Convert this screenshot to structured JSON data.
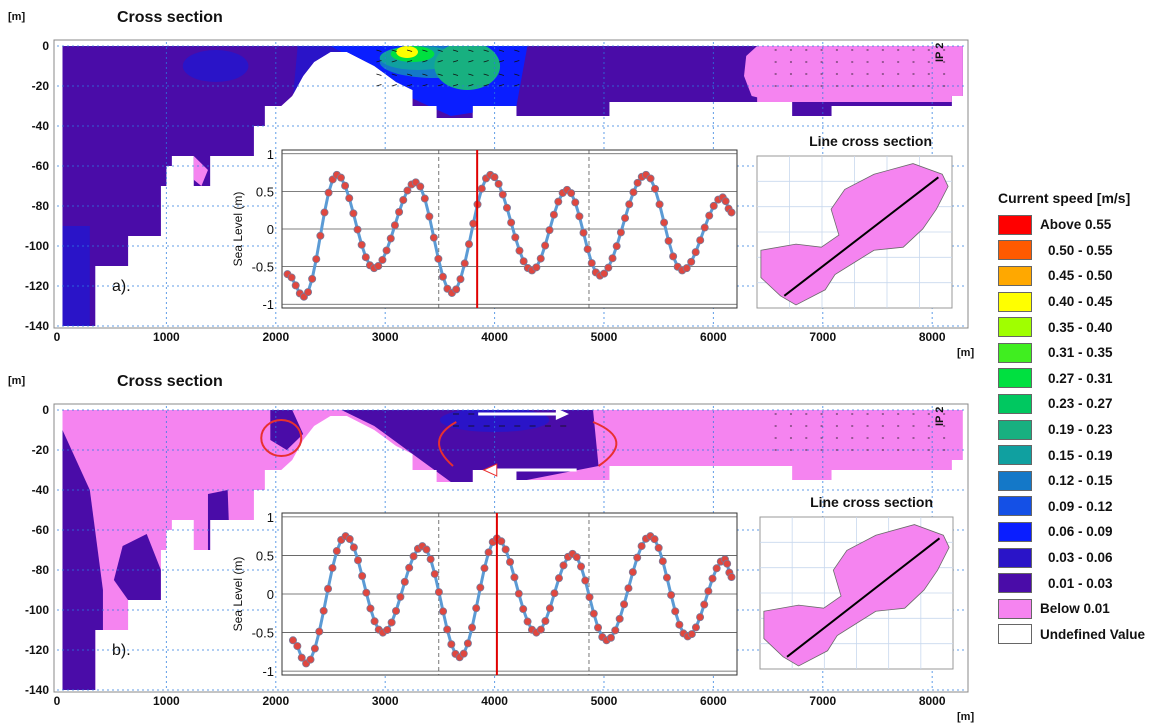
{
  "chart_data": [
    {
      "panel": "a).",
      "type": "area",
      "title": "Cross section",
      "unit_label": "[m]",
      "x_axis_label": "[m]",
      "x_ticks": [
        0,
        1000,
        2000,
        3000,
        4000,
        5000,
        6000,
        7000,
        8000
      ],
      "y_ticks": [
        0,
        -20,
        -40,
        -60,
        -80,
        -100,
        -120,
        -140
      ],
      "xlim": [
        0,
        8300
      ],
      "ylim": [
        -140,
        2
      ],
      "grid": true,
      "profile_label": "IP 2",
      "speed_classes": {
        "below_0_01": "x>=6400 and x<=8200 depth 0-25; x 1150-1350 depth 55-70; x 1400-1800 depth 0-20",
        "0_01_0_03": "western column x 50-1800",
        "0_03_0_09": "surface zone x 2500-4000",
        "0_09_0_27": "surface jet x 2900-3800 depth 0-15"
      },
      "inset_sea_level": {
        "type": "line",
        "ylabel": "Sea Level  (m)",
        "yticks": [
          1,
          0.5,
          0,
          -0.5,
          -1
        ],
        "ylim": [
          -1.05,
          1.05
        ],
        "x_range": [
          2150,
          6200
        ],
        "marker": "red circles",
        "line_color": "#5b9bd5",
        "current_time_x": 3880,
        "dashed_x": [
          3530,
          4900
        ],
        "peaks": [
          [
            2150,
            -0.6
          ],
          [
            2300,
            -0.9
          ],
          [
            2600,
            0.72
          ],
          [
            2940,
            -0.52
          ],
          [
            3320,
            0.62
          ],
          [
            3650,
            -0.85
          ],
          [
            4000,
            0.72
          ],
          [
            4380,
            -0.55
          ],
          [
            4700,
            0.52
          ],
          [
            5000,
            -0.62
          ],
          [
            5420,
            0.72
          ],
          [
            5750,
            -0.55
          ],
          [
            6120,
            0.42
          ],
          [
            6200,
            0.22
          ]
        ]
      },
      "inset_map_title": "Line cross section"
    },
    {
      "panel": "b).",
      "type": "area",
      "title": "Cross section",
      "unit_label": "[m]",
      "x_axis_label": "[m]",
      "x_ticks": [
        0,
        1000,
        2000,
        3000,
        4000,
        5000,
        6000,
        7000,
        8000
      ],
      "y_ticks": [
        0,
        -20,
        -40,
        -60,
        -80,
        -100,
        -120,
        -140
      ],
      "xlim": [
        0,
        8300
      ],
      "ylim": [
        -140,
        2
      ],
      "grid": true,
      "profile_label": "IP 2",
      "speed_classes": {
        "below_0_01": "most of section",
        "0_01_0_03": "x 2000-4800 upper layer, western bottom strip"
      },
      "inset_sea_level": {
        "type": "line",
        "ylabel": "Sea Level  (m)",
        "yticks": [
          1,
          0.5,
          0,
          -0.5,
          -1
        ],
        "ylim": [
          -1.05,
          1.05
        ],
        "x_range": [
          2200,
          6200
        ],
        "marker": "red circles",
        "line_color": "#5b9bd5",
        "current_time_x": 4060,
        "dashed_x": [
          3530,
          4900
        ],
        "peaks": [
          [
            2200,
            -0.6
          ],
          [
            2320,
            -0.9
          ],
          [
            2680,
            0.75
          ],
          [
            3020,
            -0.5
          ],
          [
            3380,
            0.62
          ],
          [
            3720,
            -0.82
          ],
          [
            4060,
            0.72
          ],
          [
            4420,
            -0.5
          ],
          [
            4750,
            0.52
          ],
          [
            5060,
            -0.6
          ],
          [
            5460,
            0.75
          ],
          [
            5800,
            -0.55
          ],
          [
            6140,
            0.45
          ],
          [
            6200,
            0.22
          ]
        ]
      },
      "inset_map_title": "Line cross section"
    }
  ],
  "legend": {
    "title": "Current speed [m/s]",
    "items": [
      {
        "label": "Above 0.55",
        "color": "#ff0000"
      },
      {
        "label": "0.50 - 0.55",
        "color": "#ff5a00"
      },
      {
        "label": "0.45 - 0.50",
        "color": "#ffa800"
      },
      {
        "label": "0.40 - 0.45",
        "color": "#ffff00"
      },
      {
        "label": "0.35 - 0.40",
        "color": "#a0ff00"
      },
      {
        "label": "0.31 - 0.35",
        "color": "#40ee20"
      },
      {
        "label": "0.27 - 0.31",
        "color": "#00e040"
      },
      {
        "label": "0.23 - 0.27",
        "color": "#00c860"
      },
      {
        "label": "0.19 - 0.23",
        "color": "#18b080"
      },
      {
        "label": "0.15 - 0.19",
        "color": "#10a0a0"
      },
      {
        "label": "0.12 - 0.15",
        "color": "#1478c8"
      },
      {
        "label": "0.09 - 0.12",
        "color": "#1450e6"
      },
      {
        "label": "0.06 - 0.09",
        "color": "#0a1eff"
      },
      {
        "label": "0.03 - 0.06",
        "color": "#2a14c8"
      },
      {
        "label": "0.01 - 0.03",
        "color": "#4a0ca8"
      },
      {
        "label": "Below 0.01",
        "color": "#f584f0"
      },
      {
        "label": "Undefined Value",
        "color": "#ffffff"
      }
    ]
  }
}
